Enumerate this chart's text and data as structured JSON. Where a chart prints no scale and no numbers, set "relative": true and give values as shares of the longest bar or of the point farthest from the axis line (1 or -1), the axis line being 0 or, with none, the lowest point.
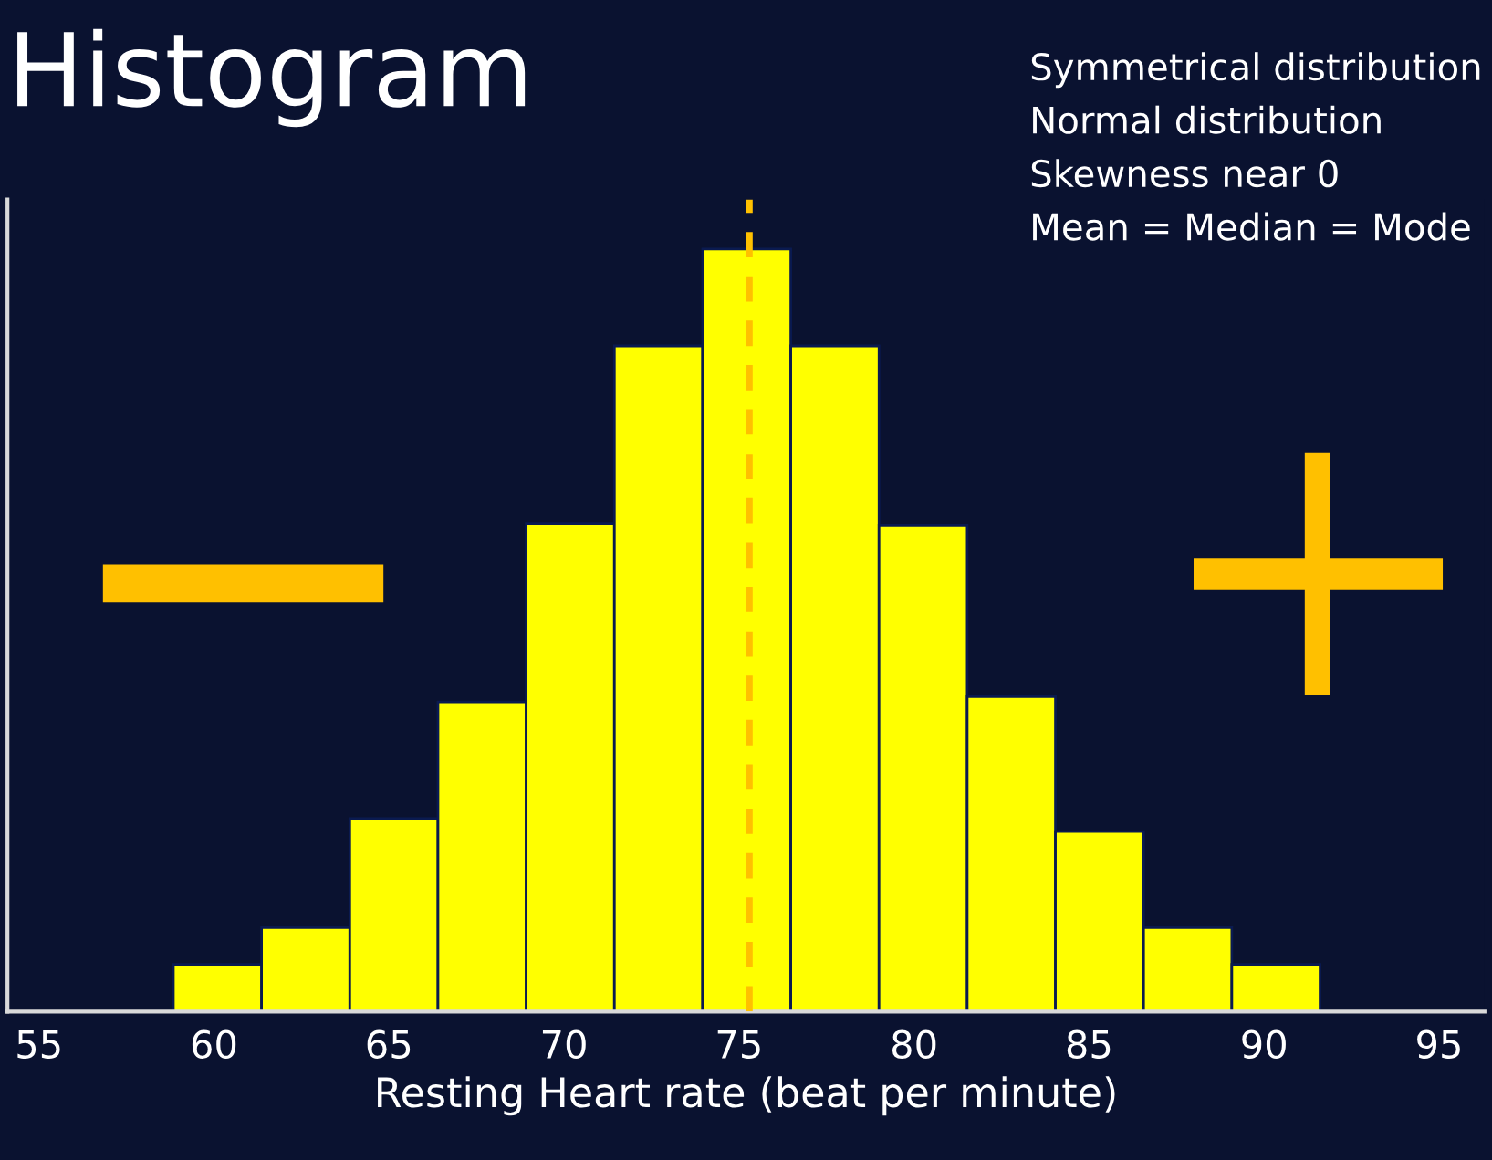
{
  "chart_data": {
    "type": "bar",
    "title": "Histogram",
    "xlabel": "Resting Heart rate (beat per minute)",
    "annotations": [
      "Symmetrical distribution",
      "Normal distribution",
      "Skewness near 0",
      "Mean = Median = Mode"
    ],
    "x": [
      60.1,
      62.62,
      65.14,
      67.66,
      70.18,
      72.7,
      75.22,
      77.74,
      80.26,
      82.78,
      85.3,
      87.82,
      90.34
    ],
    "values": [
      0.062,
      0.11,
      0.253,
      0.406,
      0.64,
      0.873,
      1,
      0.873,
      0.638,
      0.413,
      0.236,
      0.11,
      0.062
    ],
    "relative": true,
    "color": "#ffff00",
    "xlim": [
      54.1,
      96.3
    ],
    "xticks": [
      {
        "value": 55,
        "label": "55"
      },
      {
        "value": 60,
        "label": "60"
      },
      {
        "value": 65,
        "label": "65"
      },
      {
        "value": 70,
        "label": "70"
      },
      {
        "value": 75,
        "label": "75"
      },
      {
        "value": 80,
        "label": "80"
      },
      {
        "value": 85,
        "label": "85"
      },
      {
        "value": 90,
        "label": "90"
      },
      {
        "value": 95,
        "label": "95"
      }
    ],
    "ref_lines": [
      {
        "axis": "x",
        "value": 75.3,
        "color": "#ffc000",
        "line_style": "dashed"
      }
    ],
    "tick_labels": "x",
    "grid": false,
    "legend": false
  }
}
